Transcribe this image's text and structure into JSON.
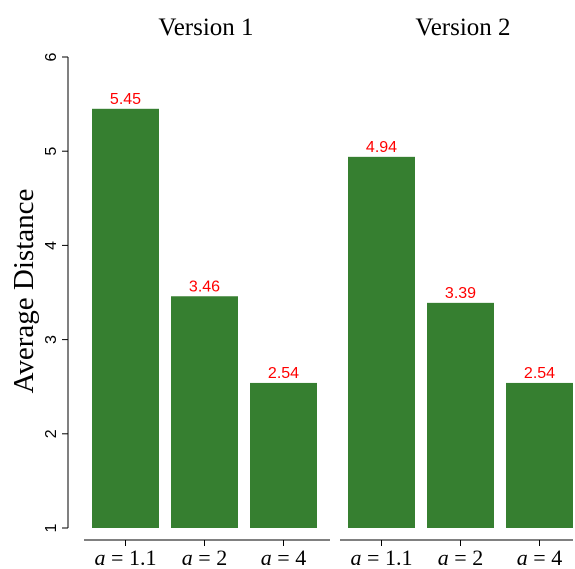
{
  "chart_data": {
    "type": "bar",
    "ylabel": "Average Distance",
    "ylim": [
      1,
      6
    ],
    "yticks": [
      1,
      2,
      3,
      4,
      5,
      6
    ],
    "grid": false,
    "legend": "none",
    "bar_color": "#367f30",
    "label_color": "#ff0000",
    "panels": [
      {
        "title": "Version 1",
        "categories": [
          {
            "var": "a",
            "rest": " = 1.1"
          },
          {
            "var": "a",
            "rest": " = 2"
          },
          {
            "var": "a",
            "rest": " = 4"
          }
        ],
        "values": [
          5.45,
          3.46,
          2.54
        ],
        "labels": [
          "5.45",
          "3.46",
          "2.54"
        ]
      },
      {
        "title": "Version 2",
        "categories": [
          {
            "var": "a",
            "rest": " = 1.1"
          },
          {
            "var": "a",
            "rest": " = 2"
          },
          {
            "var": "a",
            "rest": " = 4"
          }
        ],
        "values": [
          4.94,
          3.39,
          2.54
        ],
        "labels": [
          "4.94",
          "3.39",
          "2.54"
        ]
      }
    ]
  }
}
